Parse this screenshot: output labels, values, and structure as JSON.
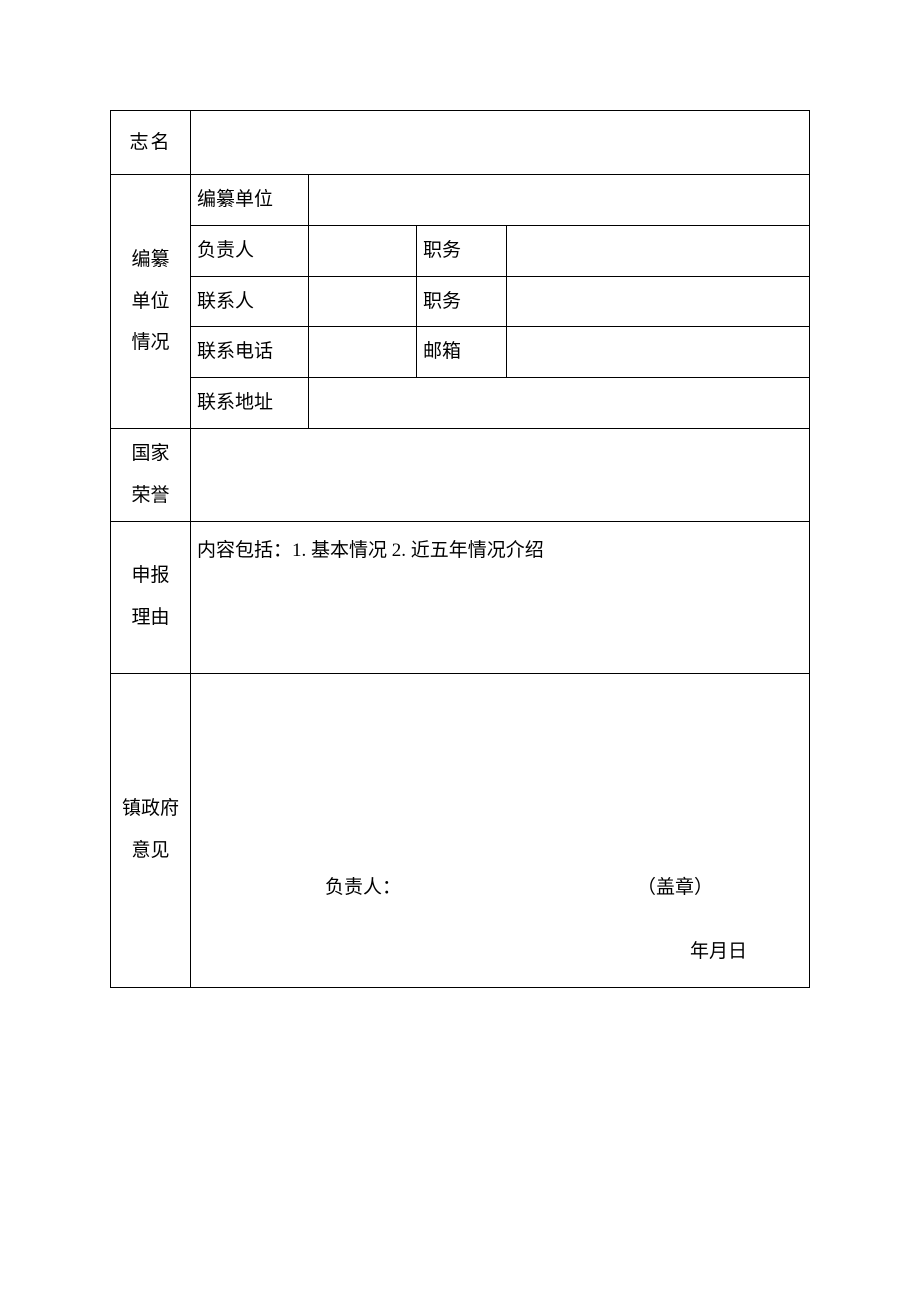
{
  "labels": {
    "zhiming": "志名",
    "unit_group_l1": "编纂",
    "unit_group_l2": "单位",
    "unit_group_l3": "情况",
    "bianzuan_danwei": "编纂单位",
    "fuzeren": "负责人",
    "zhiwu1": "职务",
    "lianxiren": "联系人",
    "zhiwu2": "职务",
    "lianxidianhua": "联系电话",
    "youxiang": "邮箱",
    "lianxidizhi": "联系地址",
    "honor_l1": "国家",
    "honor_l2": "荣誉",
    "reason_l1": "申报",
    "reason_l2": "理由",
    "reason_content": "内容包括：1. 基本情况 2. 近五年情况介绍",
    "opinion_l1": "镇政府",
    "opinion_l2": "意见",
    "opinion_responsible": "负责人：",
    "opinion_seal": "（盖章）",
    "opinion_date": "年月日"
  },
  "values": {
    "zhiming": "",
    "bianzuan_danwei": "",
    "fuzeren": "",
    "fuzeren_zhiwu": "",
    "lianxiren": "",
    "lianxiren_zhiwu": "",
    "lianxidianhua": "",
    "youxiang": "",
    "lianxidizhi": "",
    "honor": "",
    "opinion_responsible_value": "",
    "opinion_date_value": ""
  }
}
